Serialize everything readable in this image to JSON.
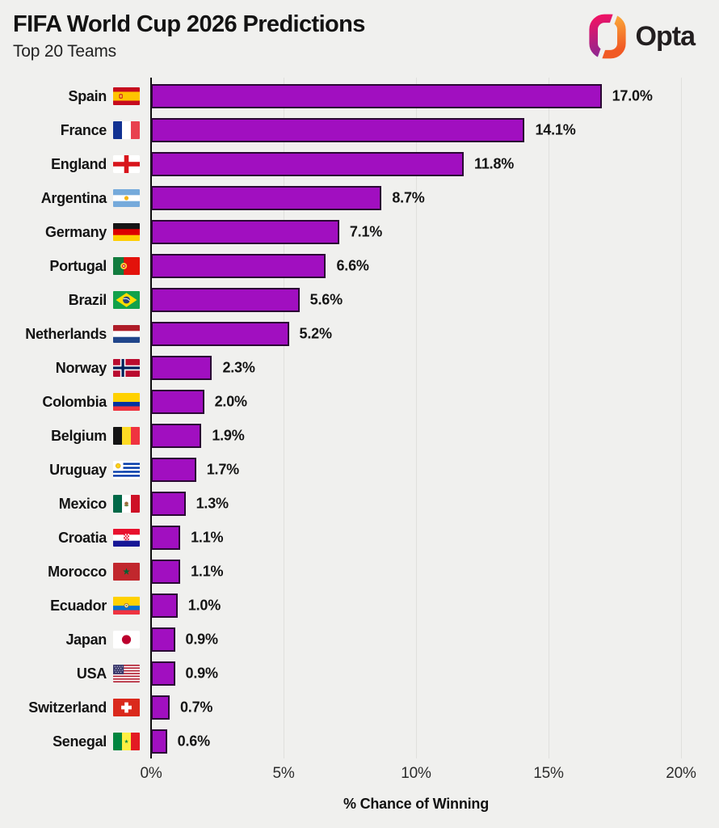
{
  "header": {
    "title": "FIFA World Cup 2026 Predictions",
    "subtitle": "Top 20 Teams",
    "brand": "Opta"
  },
  "colors": {
    "background": "#f0f0ee",
    "bar_fill": "#a10fc0",
    "bar_border": "#2a0833",
    "gridline": "#e0e0dd",
    "axis": "#0c0c0c",
    "logo_left_top": "#ED1365",
    "logo_left_bottom": "#92278F",
    "logo_right_top": "#FBB03B",
    "logo_right_bottom": "#F15A24"
  },
  "chart_data": {
    "type": "bar",
    "orientation": "horizontal",
    "title": "FIFA World Cup 2026 Predictions",
    "subtitle": "Top 20 Teams",
    "xlabel": "% Chance of Winning",
    "ylabel": "",
    "xlim": [
      0,
      20
    ],
    "x_ticks": [
      "0%",
      "5%",
      "10%",
      "15%",
      "20%"
    ],
    "grid": true,
    "legend": false,
    "categories": [
      "Spain",
      "France",
      "England",
      "Argentina",
      "Germany",
      "Portugal",
      "Brazil",
      "Netherlands",
      "Norway",
      "Colombia",
      "Belgium",
      "Uruguay",
      "Mexico",
      "Croatia",
      "Morocco",
      "Ecuador",
      "Japan",
      "USA",
      "Switzerland",
      "Senegal"
    ],
    "values": [
      17.0,
      14.1,
      11.8,
      8.7,
      7.1,
      6.6,
      5.6,
      5.2,
      2.3,
      2.0,
      1.9,
      1.7,
      1.3,
      1.1,
      1.1,
      1.0,
      0.9,
      0.9,
      0.7,
      0.6
    ],
    "value_labels": [
      "17.0%",
      "14.1%",
      "11.8%",
      "8.7%",
      "7.1%",
      "6.6%",
      "5.6%",
      "5.2%",
      "2.3%",
      "2.0%",
      "1.9%",
      "1.7%",
      "1.3%",
      "1.1%",
      "1.1%",
      "1.0%",
      "0.9%",
      "0.9%",
      "0.7%",
      "0.6%"
    ],
    "flags": [
      "es",
      "fr",
      "eng",
      "ar",
      "de",
      "pt",
      "br",
      "nl",
      "no",
      "co",
      "be",
      "uy",
      "mx",
      "hr",
      "ma",
      "ec",
      "jp",
      "us",
      "ch",
      "sn"
    ]
  }
}
